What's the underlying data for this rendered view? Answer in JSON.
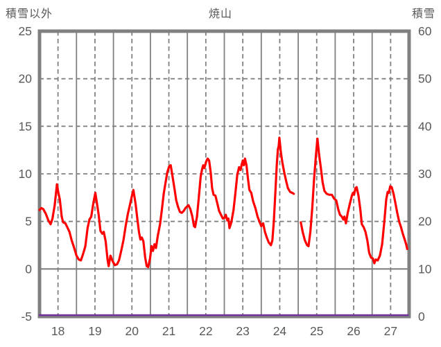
{
  "header": {
    "left_axis_title": "積雪以外",
    "chart_title": "焼山",
    "right_axis_title": "積雪"
  },
  "chart_data": {
    "type": "line",
    "title": "焼山",
    "background": "#FFFFFF",
    "grid_color": "#808080",
    "text_color": "#595959",
    "x_axis": {
      "range": [
        18,
        28
      ],
      "tick_labels": [
        "18",
        "19",
        "20",
        "21",
        "22",
        "23",
        "24",
        "25",
        "26",
        "27"
      ],
      "tick_label_positions": [
        18.5,
        19.5,
        20.5,
        21.5,
        22.5,
        23.5,
        24.5,
        25.5,
        26.5,
        27.5
      ],
      "solid_gridlines": [
        19,
        20,
        21,
        22,
        23,
        24,
        25,
        26,
        27
      ],
      "dashed_gridlines": [
        18.5,
        19.5,
        20.5,
        21.5,
        22.5,
        23.5,
        24.5,
        25.5,
        26.5,
        27.5
      ]
    },
    "y_left": {
      "title": "積雪以外",
      "range": [
        -5,
        25
      ],
      "ticks": [
        25,
        20,
        15,
        10,
        5,
        0,
        -5
      ],
      "dashed_gridlines": [
        20,
        15,
        10,
        5
      ],
      "solid_gridlines": [
        0
      ]
    },
    "y_right": {
      "title": "積雪",
      "range": [
        0,
        60
      ],
      "ticks": [
        60,
        50,
        40,
        30,
        20,
        10,
        0
      ]
    },
    "series": [
      {
        "name": "積雪以外",
        "axis": "left",
        "color": "#FF0000",
        "width": 3.2,
        "segments": [
          [
            [
              18.0,
              6.2
            ],
            [
              18.05,
              6.4
            ],
            [
              18.1,
              6.3
            ],
            [
              18.17,
              5.8
            ],
            [
              18.24,
              5.1
            ],
            [
              18.3,
              4.7
            ],
            [
              18.35,
              5.3
            ],
            [
              18.41,
              6.7
            ],
            [
              18.47,
              8.9
            ],
            [
              18.51,
              8.0
            ],
            [
              18.55,
              7.3
            ],
            [
              18.6,
              5.5
            ],
            [
              18.64,
              4.9
            ],
            [
              18.7,
              4.8
            ],
            [
              18.75,
              4.4
            ],
            [
              18.81,
              3.9
            ],
            [
              18.87,
              3.0
            ],
            [
              18.93,
              2.3
            ],
            [
              19.0,
              1.4
            ],
            [
              19.06,
              1.0
            ],
            [
              19.12,
              0.9
            ],
            [
              19.18,
              1.6
            ],
            [
              19.24,
              2.4
            ],
            [
              19.3,
              4.3
            ],
            [
              19.35,
              5.2
            ],
            [
              19.4,
              5.5
            ],
            [
              19.46,
              7.0
            ],
            [
              19.51,
              8.0
            ],
            [
              19.55,
              7.0
            ],
            [
              19.6,
              5.7
            ],
            [
              19.65,
              4.0
            ],
            [
              19.7,
              3.7
            ],
            [
              19.74,
              3.9
            ],
            [
              19.79,
              2.9
            ],
            [
              19.84,
              1.0
            ],
            [
              19.87,
              0.3
            ],
            [
              19.92,
              1.4
            ],
            [
              19.98,
              0.8
            ],
            [
              20.04,
              0.4
            ],
            [
              20.1,
              0.5
            ],
            [
              20.15,
              0.9
            ],
            [
              20.21,
              1.9
            ],
            [
              20.27,
              3.0
            ],
            [
              20.33,
              4.5
            ],
            [
              20.39,
              5.8
            ],
            [
              20.45,
              6.8
            ],
            [
              20.5,
              7.7
            ],
            [
              20.54,
              8.3
            ],
            [
              20.6,
              6.8
            ],
            [
              20.64,
              5.5
            ],
            [
              20.69,
              3.9
            ],
            [
              20.73,
              3.1
            ],
            [
              20.77,
              3.3
            ],
            [
              20.81,
              2.9
            ],
            [
              20.86,
              1.2
            ],
            [
              20.9,
              0.3
            ],
            [
              20.94,
              0.2
            ],
            [
              20.99,
              1.1
            ],
            [
              21.03,
              2.4
            ],
            [
              21.07,
              1.9
            ],
            [
              21.11,
              2.6
            ],
            [
              21.15,
              2.2
            ],
            [
              21.2,
              3.5
            ],
            [
              21.26,
              4.7
            ],
            [
              21.31,
              6.2
            ],
            [
              21.36,
              7.9
            ],
            [
              21.41,
              9.1
            ],
            [
              21.46,
              10.2
            ],
            [
              21.51,
              10.8
            ],
            [
              21.55,
              10.9
            ],
            [
              21.6,
              9.7
            ],
            [
              21.65,
              8.5
            ],
            [
              21.7,
              7.2
            ],
            [
              21.75,
              6.5
            ],
            [
              21.8,
              6.0
            ],
            [
              21.85,
              5.9
            ],
            [
              21.9,
              6.1
            ],
            [
              21.95,
              6.4
            ],
            [
              22.0,
              6.6
            ],
            [
              22.03,
              6.7
            ],
            [
              22.08,
              6.3
            ],
            [
              22.13,
              5.6
            ],
            [
              22.18,
              4.5
            ],
            [
              22.21,
              4.4
            ],
            [
              22.26,
              5.5
            ],
            [
              22.31,
              7.5
            ],
            [
              22.36,
              9.7
            ],
            [
              22.4,
              10.5
            ],
            [
              22.43,
              10.9
            ],
            [
              22.46,
              10.6
            ],
            [
              22.51,
              11.3
            ],
            [
              22.55,
              11.6
            ],
            [
              22.59,
              11.4
            ],
            [
              22.63,
              10.2
            ],
            [
              22.67,
              8.5
            ],
            [
              22.71,
              7.8
            ],
            [
              22.76,
              7.7
            ],
            [
              22.81,
              6.9
            ],
            [
              22.86,
              6.1
            ],
            [
              22.91,
              5.7
            ],
            [
              22.96,
              5.3
            ],
            [
              23.01,
              5.4
            ],
            [
              23.04,
              5.7
            ],
            [
              23.08,
              5.1
            ],
            [
              23.11,
              5.3
            ],
            [
              23.14,
              4.3
            ],
            [
              23.19,
              4.9
            ],
            [
              23.25,
              6.2
            ],
            [
              23.3,
              8.0
            ],
            [
              23.35,
              9.9
            ],
            [
              23.4,
              10.7
            ],
            [
              23.44,
              10.4
            ],
            [
              23.47,
              11.0
            ],
            [
              23.5,
              11.4
            ],
            [
              23.53,
              10.9
            ],
            [
              23.56,
              11.6
            ],
            [
              23.6,
              10.9
            ],
            [
              23.64,
              9.5
            ],
            [
              23.68,
              8.3
            ],
            [
              23.73,
              8.0
            ],
            [
              23.78,
              7.1
            ],
            [
              23.84,
              6.4
            ],
            [
              23.9,
              5.5
            ],
            [
              23.95,
              5.0
            ],
            [
              24.0,
              4.5
            ],
            [
              24.05,
              4.8
            ],
            [
              24.1,
              3.9
            ],
            [
              24.15,
              3.3
            ],
            [
              24.2,
              2.8
            ],
            [
              24.26,
              2.5
            ],
            [
              24.3,
              3.0
            ],
            [
              24.34,
              5.0
            ],
            [
              24.38,
              8.0
            ],
            [
              24.42,
              11.0
            ],
            [
              24.45,
              12.6
            ],
            [
              24.47,
              12.9
            ],
            [
              24.49,
              13.8
            ],
            [
              24.53,
              12.3
            ],
            [
              24.57,
              11.2
            ],
            [
              24.62,
              10.2
            ],
            [
              24.67,
              9.3
            ],
            [
              24.72,
              8.5
            ],
            [
              24.78,
              8.1
            ],
            [
              24.84,
              8.0
            ],
            [
              24.88,
              7.9
            ]
          ],
          [
            [
              25.07,
              4.9
            ],
            [
              25.12,
              3.9
            ],
            [
              25.18,
              3.0
            ],
            [
              25.24,
              2.5
            ],
            [
              25.28,
              2.4
            ],
            [
              25.33,
              4.0
            ],
            [
              25.38,
              6.5
            ],
            [
              25.43,
              9.5
            ],
            [
              25.48,
              12.0
            ],
            [
              25.52,
              13.7
            ],
            [
              25.56,
              12.2
            ],
            [
              25.61,
              10.7
            ],
            [
              25.66,
              9.1
            ],
            [
              25.71,
              8.2
            ],
            [
              25.77,
              7.9
            ],
            [
              25.84,
              7.8
            ],
            [
              25.91,
              7.8
            ],
            [
              25.97,
              7.4
            ],
            [
              26.03,
              7.2
            ],
            [
              26.08,
              6.3
            ],
            [
              26.13,
              5.7
            ],
            [
              26.18,
              5.5
            ],
            [
              26.22,
              5.2
            ],
            [
              26.25,
              5.5
            ],
            [
              26.29,
              4.8
            ],
            [
              26.34,
              5.9
            ],
            [
              26.4,
              6.9
            ],
            [
              26.45,
              7.7
            ],
            [
              26.48,
              8.0
            ],
            [
              26.51,
              7.8
            ],
            [
              26.55,
              8.5
            ],
            [
              26.58,
              8.6
            ],
            [
              26.63,
              7.7
            ],
            [
              26.68,
              6.3
            ],
            [
              26.72,
              4.7
            ],
            [
              26.77,
              4.4
            ],
            [
              26.82,
              3.9
            ],
            [
              26.87,
              3.0
            ],
            [
              26.92,
              1.7
            ],
            [
              26.97,
              1.2
            ],
            [
              27.02,
              1.1
            ],
            [
              27.06,
              0.6
            ],
            [
              27.1,
              1.0
            ],
            [
              27.15,
              0.9
            ],
            [
              27.21,
              1.4
            ],
            [
              27.27,
              2.6
            ],
            [
              27.33,
              5.0
            ],
            [
              27.38,
              7.3
            ],
            [
              27.42,
              8.1
            ],
            [
              27.45,
              8.0
            ],
            [
              27.49,
              8.7
            ],
            [
              27.53,
              8.6
            ],
            [
              27.58,
              7.9
            ],
            [
              27.63,
              6.9
            ],
            [
              27.68,
              5.9
            ],
            [
              27.73,
              5.0
            ],
            [
              27.78,
              4.4
            ],
            [
              27.83,
              3.7
            ],
            [
              27.88,
              3.1
            ],
            [
              27.92,
              2.6
            ],
            [
              27.95,
              2.1
            ]
          ]
        ]
      },
      {
        "name": "積雪",
        "axis": "right",
        "color": "#7030A0",
        "width": 2.6,
        "segments": [
          [
            [
              18.0,
              0
            ],
            [
              27.97,
              0
            ]
          ]
        ]
      }
    ]
  }
}
